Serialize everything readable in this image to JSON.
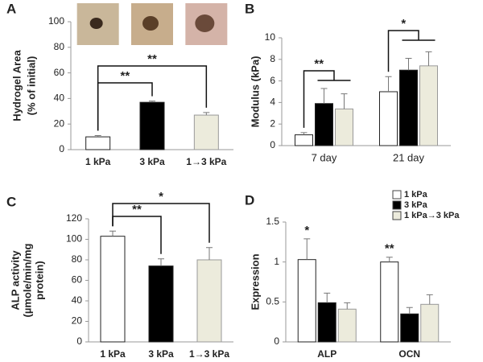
{
  "chart_data": [
    {
      "panel": "A",
      "type": "bar",
      "ylabel": [
        "Hydrogel Area",
        "(% of initial)"
      ],
      "categories": [
        "1 kPa",
        "3 kPa",
        "1→3 kPa"
      ],
      "values": [
        10,
        37,
        27
      ],
      "errors": [
        1,
        1,
        2
      ],
      "colors": [
        "#ffffff",
        "#000000",
        "#ecebdc"
      ],
      "ylim": [
        0,
        100
      ],
      "yticks": [
        0,
        20,
        40,
        60,
        80,
        100
      ],
      "annotations": [
        "**",
        "**"
      ]
    },
    {
      "panel": "B",
      "type": "bar",
      "ylabel": [
        "Modulus (kPa)"
      ],
      "categories": [
        "7 day",
        "21 day"
      ],
      "series": [
        {
          "color": "#ffffff",
          "values": [
            1.0,
            5.0
          ],
          "errors": [
            0.2,
            1.4
          ]
        },
        {
          "color": "#000000",
          "values": [
            3.9,
            7.0
          ],
          "errors": [
            1.4,
            1.1
          ]
        },
        {
          "color": "#ecebdc",
          "values": [
            3.4,
            7.4
          ],
          "errors": [
            1.4,
            1.3
          ]
        }
      ],
      "ylim": [
        0,
        10
      ],
      "yticks": [
        0,
        2,
        4,
        6,
        8,
        10
      ],
      "annotations": [
        "**",
        "*"
      ]
    },
    {
      "panel": "C",
      "type": "bar",
      "ylabel": [
        "ALP activity",
        "(µmole/min/mg",
        "protein)"
      ],
      "categories": [
        "1 kPa",
        "3 kPa",
        "1→3 kPa"
      ],
      "values": [
        103,
        74,
        80
      ],
      "errors": [
        5,
        7,
        12
      ],
      "colors": [
        "#ffffff",
        "#000000",
        "#ecebdc"
      ],
      "ylim": [
        0,
        120
      ],
      "yticks": [
        0,
        20,
        40,
        60,
        80,
        100,
        120
      ],
      "annotations": [
        "**",
        "*"
      ]
    },
    {
      "panel": "D",
      "type": "bar",
      "ylabel": [
        "Expression"
      ],
      "legend": "upper right",
      "categories": [
        "ALP",
        "OCN"
      ],
      "series": [
        {
          "name": "1 kPa",
          "color": "#ffffff",
          "values": [
            1.03,
            1.0
          ],
          "errors": [
            0.26,
            0.06
          ]
        },
        {
          "name": "3 kPa",
          "color": "#000000",
          "values": [
            0.49,
            0.35
          ],
          "errors": [
            0.12,
            0.08
          ]
        },
        {
          "name": "1 kPa→3 kPa",
          "color": "#ecebdc",
          "values": [
            0.41,
            0.47
          ],
          "errors": [
            0.08,
            0.12
          ]
        }
      ],
      "ylim": [
        0,
        1.5
      ],
      "yticks": [
        0,
        0.5,
        1,
        1.5
      ],
      "annotations": [
        "*",
        "**"
      ]
    }
  ]
}
